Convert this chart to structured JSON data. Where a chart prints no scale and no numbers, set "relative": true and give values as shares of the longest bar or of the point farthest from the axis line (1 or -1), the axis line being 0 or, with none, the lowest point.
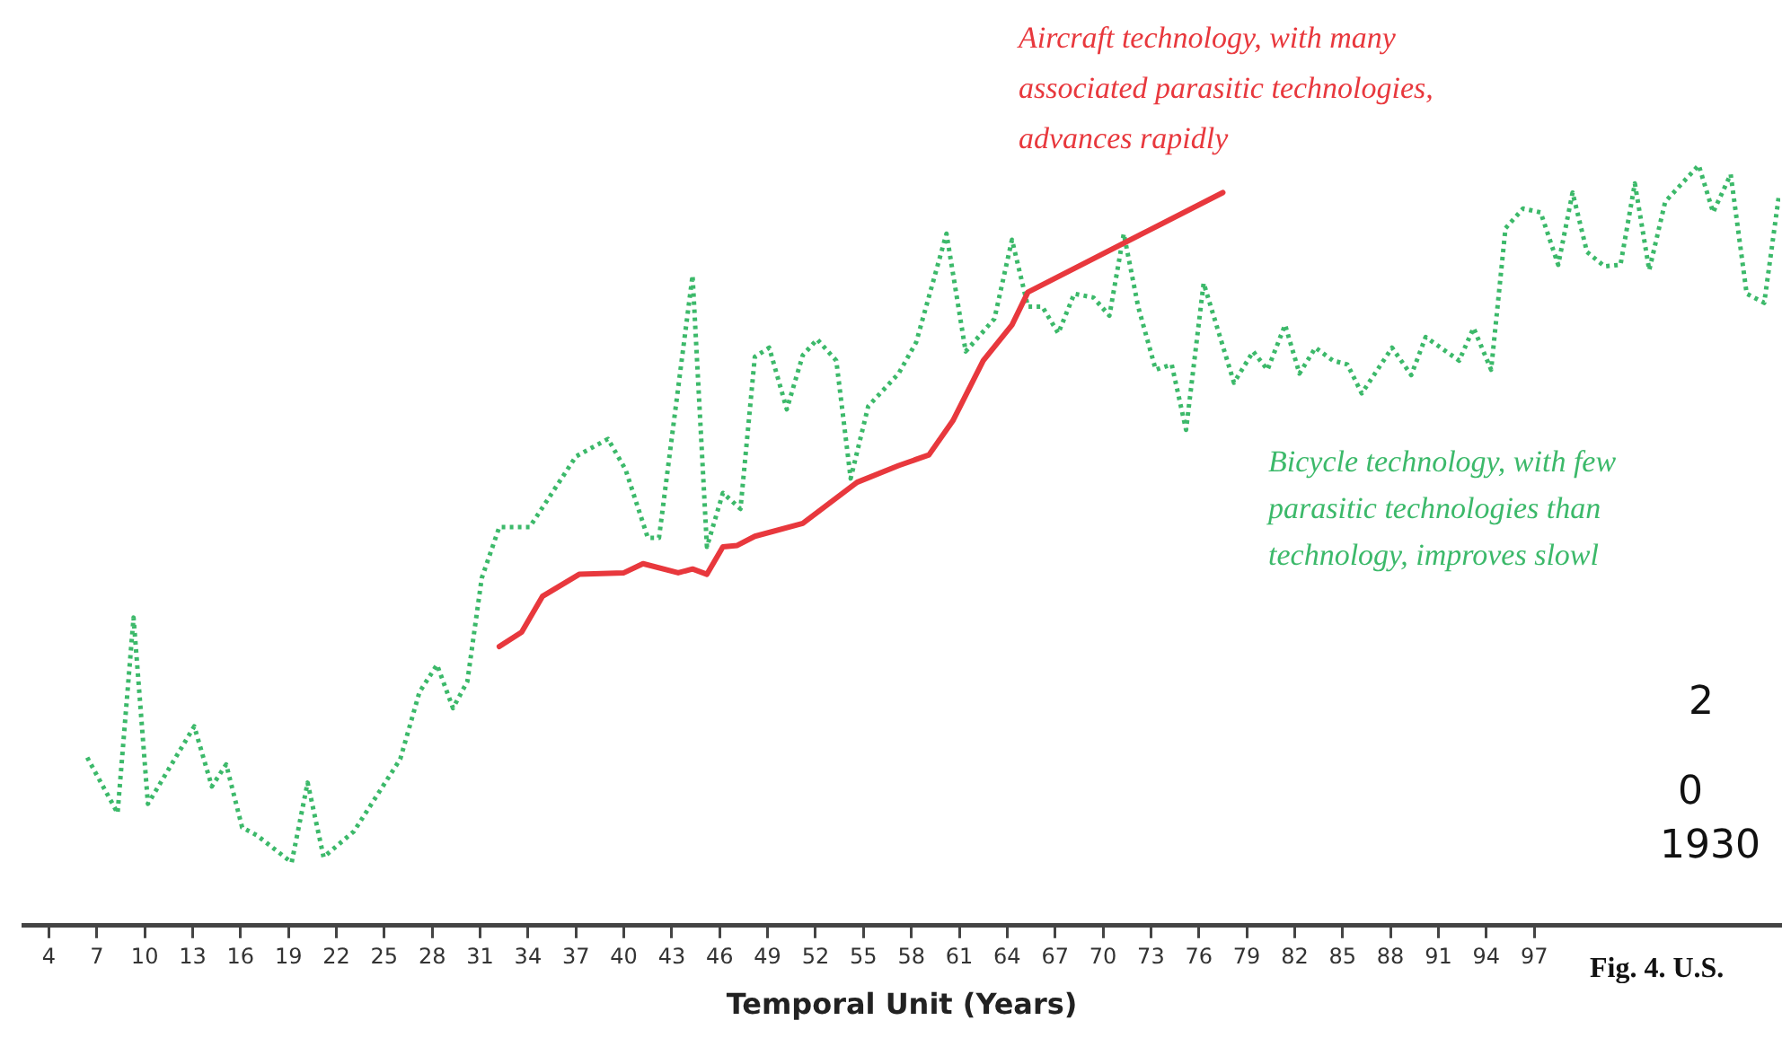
{
  "chart_data": {
    "type": "line",
    "xlabel": "Temporal Unit (Years)",
    "relative": true,
    "xlim": [
      2.4,
      112.4
    ],
    "xticks": [
      4,
      7,
      10,
      13,
      16,
      19,
      22,
      25,
      28,
      31,
      34,
      37,
      40,
      43,
      46,
      49,
      52,
      55,
      58,
      61,
      64,
      67,
      70,
      73,
      76,
      79,
      82,
      85,
      88,
      91,
      94,
      97
    ],
    "grid": false,
    "legend": false,
    "marker": "none",
    "series": [
      {
        "color": "#e8383d",
        "line_style": "solid",
        "x": [
          32.2,
          33.6,
          34.9,
          37.2,
          40.0,
          41.2,
          43.4,
          44.3,
          45.2,
          46.2,
          47.1,
          48.2,
          51.2,
          54.6,
          57.2,
          59.1,
          60.6,
          62.5,
          64.3,
          65.3,
          77.5
        ],
        "values": [
          0.367,
          0.386,
          0.433,
          0.462,
          0.464,
          0.476,
          0.464,
          0.469,
          0.462,
          0.498,
          0.5,
          0.512,
          0.529,
          0.583,
          0.605,
          0.619,
          0.664,
          0.743,
          0.79,
          0.833,
          0.964
        ]
      },
      {
        "color": "#3cb96a",
        "line_style": "dotted",
        "x": [
          6.4,
          8.3,
          9.3,
          10.2,
          13.1,
          14.2,
          15.1,
          16.1,
          17.0,
          19.2,
          20.2,
          21.2,
          23.1,
          26.0,
          27.2,
          28.3,
          29.3,
          30.2,
          31.1,
          32.2,
          34.1,
          37.0,
          39.0,
          40.1,
          41.5,
          42.2,
          44.3,
          45.2,
          46.2,
          47.3,
          48.2,
          49.1,
          50.2,
          51.2,
          52.1,
          53.3,
          54.2,
          55.3,
          57.2,
          58.3,
          60.2,
          61.4,
          63.2,
          64.3,
          65.3,
          66.2,
          67.2,
          68.2,
          69.4,
          70.4,
          71.3,
          72.2,
          73.3,
          74.3,
          75.2,
          76.3,
          78.2,
          79.4,
          80.3,
          81.4,
          82.3,
          83.3,
          84.4,
          85.3,
          86.2,
          88.1,
          89.3,
          90.2,
          92.3,
          93.2,
          94.3,
          95.2,
          96.3,
          97.4,
          98.5,
          99.4,
          100.3,
          101.4,
          102.4,
          103.3,
          104.2,
          105.2,
          107.3,
          108.2,
          109.3,
          110.3,
          111.4,
          112.3
        ],
        "values": [
          0.221,
          0.148,
          0.405,
          0.16,
          0.262,
          0.183,
          0.212,
          0.129,
          0.119,
          0.083,
          0.188,
          0.09,
          0.124,
          0.219,
          0.307,
          0.343,
          0.286,
          0.321,
          0.457,
          0.524,
          0.524,
          0.617,
          0.64,
          0.6,
          0.51,
          0.51,
          0.855,
          0.498,
          0.569,
          0.548,
          0.748,
          0.76,
          0.679,
          0.75,
          0.771,
          0.743,
          0.588,
          0.683,
          0.726,
          0.767,
          0.91,
          0.755,
          0.798,
          0.902,
          0.814,
          0.814,
          0.779,
          0.831,
          0.826,
          0.802,
          0.91,
          0.814,
          0.731,
          0.738,
          0.652,
          0.845,
          0.714,
          0.755,
          0.731,
          0.79,
          0.726,
          0.76,
          0.743,
          0.738,
          0.7,
          0.76,
          0.724,
          0.774,
          0.743,
          0.786,
          0.731,
          0.917,
          0.943,
          0.938,
          0.869,
          0.964,
          0.886,
          0.867,
          0.869,
          0.976,
          0.862,
          0.952,
          1,
          0.938,
          0.988,
          0.831,
          0.819,
          0.957
        ]
      }
    ],
    "annotations": [
      "Aircraft technology, with many\nassociated parasitic technologies,\nadvances rapidly",
      "Bicycle technology, with few\nparasitic technologies than\ntechnology, improves slowl",
      "Fig. 4. U.S.",
      "2",
      "0",
      "1930"
    ]
  }
}
